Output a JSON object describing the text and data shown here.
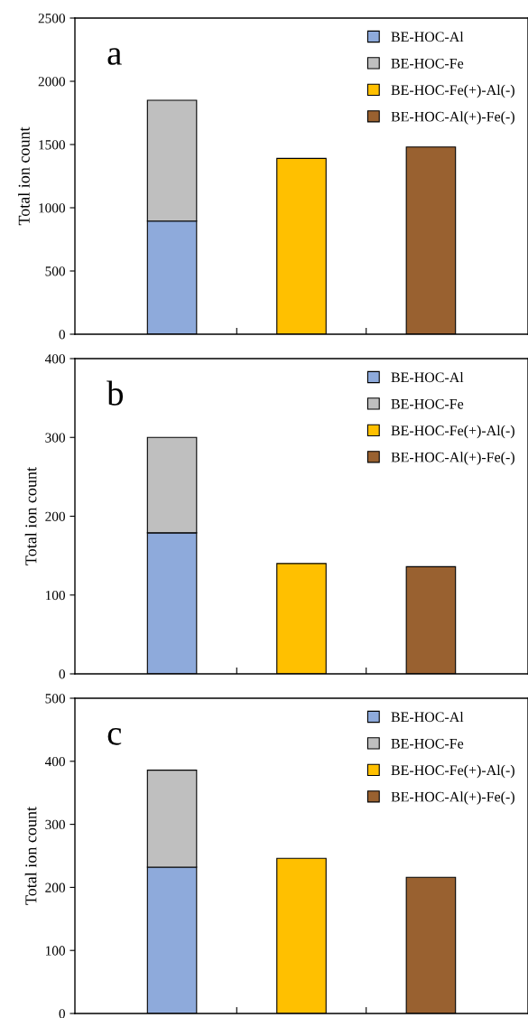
{
  "chart_data": [
    {
      "type": "bar",
      "stacked": true,
      "categories": [
        null,
        null,
        null
      ],
      "ylabel": "Total ion count",
      "annotations": [
        "a"
      ],
      "ylim": [
        0,
        2500
      ],
      "yticks": [
        0,
        500,
        1000,
        1500,
        2000,
        2500
      ],
      "legend": "top right",
      "series": [
        {
          "name": "BE-HOC-Al",
          "color": "#8eaadb",
          "values": [
            895,
            null,
            null
          ]
        },
        {
          "name": "BE-HOC-Fe",
          "color": "#bfbfbf",
          "values": [
            955,
            null,
            null
          ]
        },
        {
          "name": "BE-HOC-Fe(+)-Al(-)",
          "color": "#ffc000",
          "values": [
            null,
            1390,
            null
          ]
        },
        {
          "name": "BE-HOC-Al(+)-Fe(-)",
          "color": "#996130",
          "values": [
            null,
            null,
            1480
          ]
        }
      ]
    },
    {
      "type": "bar",
      "stacked": true,
      "categories": [
        null,
        null,
        null
      ],
      "ylabel": "Total ion count",
      "annotations": [
        "b"
      ],
      "ylim": [
        0,
        400
      ],
      "yticks": [
        0,
        100,
        200,
        300,
        400
      ],
      "legend": "top right",
      "series": [
        {
          "name": "BE-HOC-Al",
          "color": "#8eaadb",
          "values": [
            179,
            null,
            null
          ]
        },
        {
          "name": "BE-HOC-Fe",
          "color": "#bfbfbf",
          "values": [
            121,
            null,
            null
          ]
        },
        {
          "name": "BE-HOC-Fe(+)-Al(-)",
          "color": "#ffc000",
          "values": [
            null,
            140,
            null
          ]
        },
        {
          "name": "BE-HOC-Al(+)-Fe(-)",
          "color": "#996130",
          "values": [
            null,
            null,
            136
          ]
        }
      ]
    },
    {
      "type": "bar",
      "stacked": true,
      "categories": [
        null,
        null,
        null
      ],
      "ylabel": "Total ion count",
      "annotations": [
        "c"
      ],
      "ylim": [
        0,
        500
      ],
      "yticks": [
        0,
        100,
        200,
        300,
        400,
        500
      ],
      "legend": "top right",
      "series": [
        {
          "name": "BE-HOC-Al",
          "color": "#8eaadb",
          "values": [
            232,
            null,
            null
          ]
        },
        {
          "name": "BE-HOC-Fe",
          "color": "#bfbfbf",
          "values": [
            154,
            null,
            null
          ]
        },
        {
          "name": "BE-HOC-Fe(+)-Al(-)",
          "color": "#ffc000",
          "values": [
            null,
            246,
            null
          ]
        },
        {
          "name": "BE-HOC-Al(+)-Fe(-)",
          "color": "#996130",
          "values": [
            null,
            null,
            216
          ]
        }
      ]
    }
  ]
}
